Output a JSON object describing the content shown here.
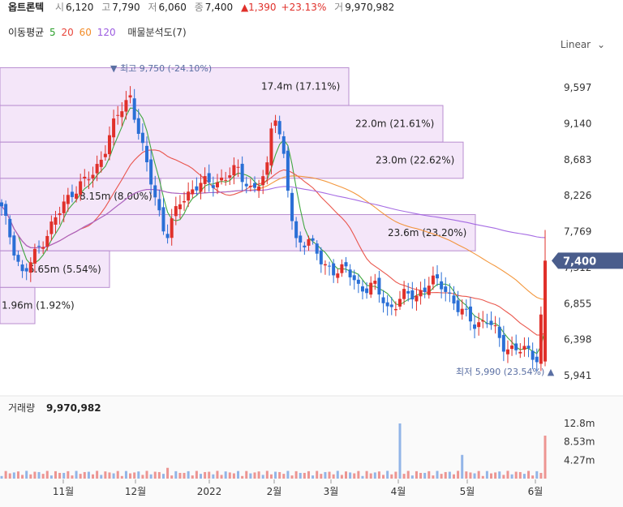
{
  "header": {
    "name": "옵트론텍",
    "open_label": "시",
    "open": "6,120",
    "high_label": "고",
    "high": "7,790",
    "low_label": "저",
    "low": "6,060",
    "close_label": "종",
    "close": "7,400",
    "change_arrow": "▲",
    "change": "1,390",
    "change_pct": "+23.13%",
    "volume_label": "거",
    "volume": "9,970,982"
  },
  "ma": {
    "label": "이동평균",
    "periods": [
      {
        "text": "5",
        "color": "#2ca02c"
      },
      {
        "text": "20",
        "color": "#e8463b"
      },
      {
        "text": "60",
        "color": "#f28c28"
      },
      {
        "text": "120",
        "color": "#9c5ce0"
      }
    ],
    "analysis": "매물분석도(7)"
  },
  "scale_mode": "Linear",
  "colors": {
    "up": "#e0302a",
    "down": "#2a6fd6",
    "profile": "#f0dcf7",
    "profile_border": "#b98ed0",
    "price_tag": "#4a5d8c"
  },
  "chart_data": {
    "type": "candlestick",
    "y_ticks": [
      "9,597",
      "9,140",
      "8,683",
      "8,226",
      "7,769",
      "7,312",
      "6,855",
      "6,398",
      "5,941"
    ],
    "y_values": [
      9597,
      9140,
      8683,
      8226,
      7769,
      7312,
      6855,
      6398,
      5941
    ],
    "ylim": [
      5800,
      10000
    ],
    "x_ticks": [
      "11월",
      "12월",
      "2022",
      "2월",
      "3월",
      "4월",
      "5월",
      "6월"
    ],
    "current_price": "7,400",
    "high_annotation": {
      "text": "최고 9,750 (-24.10%)",
      "value": 9750
    },
    "low_annotation": {
      "text": "최저 5,990 (23.54%)",
      "value": 5990
    },
    "volume_profile": [
      {
        "label": "17.4m (17.11%)",
        "low": 9370,
        "high": 9850
      },
      {
        "label": "22.0m (21.61%)",
        "low": 8905,
        "high": 9370
      },
      {
        "label": "23.0m (22.62%)",
        "low": 8445,
        "high": 8905
      },
      {
        "label": "8.15m (8.00%)",
        "low": 7985,
        "high": 8445
      },
      {
        "label": "23.6m (23.20%)",
        "low": 7525,
        "high": 7985
      },
      {
        "label": "5.65m (5.54%)",
        "low": 7060,
        "high": 7525
      },
      {
        "label": "1.96m (1.92%)",
        "low": 6600,
        "high": 7060
      }
    ],
    "volume_panel": {
      "title": "거래량",
      "value": "9,970,982",
      "ticks": [
        "12.8m",
        "8.53m",
        "4.27m"
      ],
      "tick_values": [
        12.8,
        8.53,
        4.27
      ],
      "ylim": [
        0,
        17
      ]
    }
  }
}
